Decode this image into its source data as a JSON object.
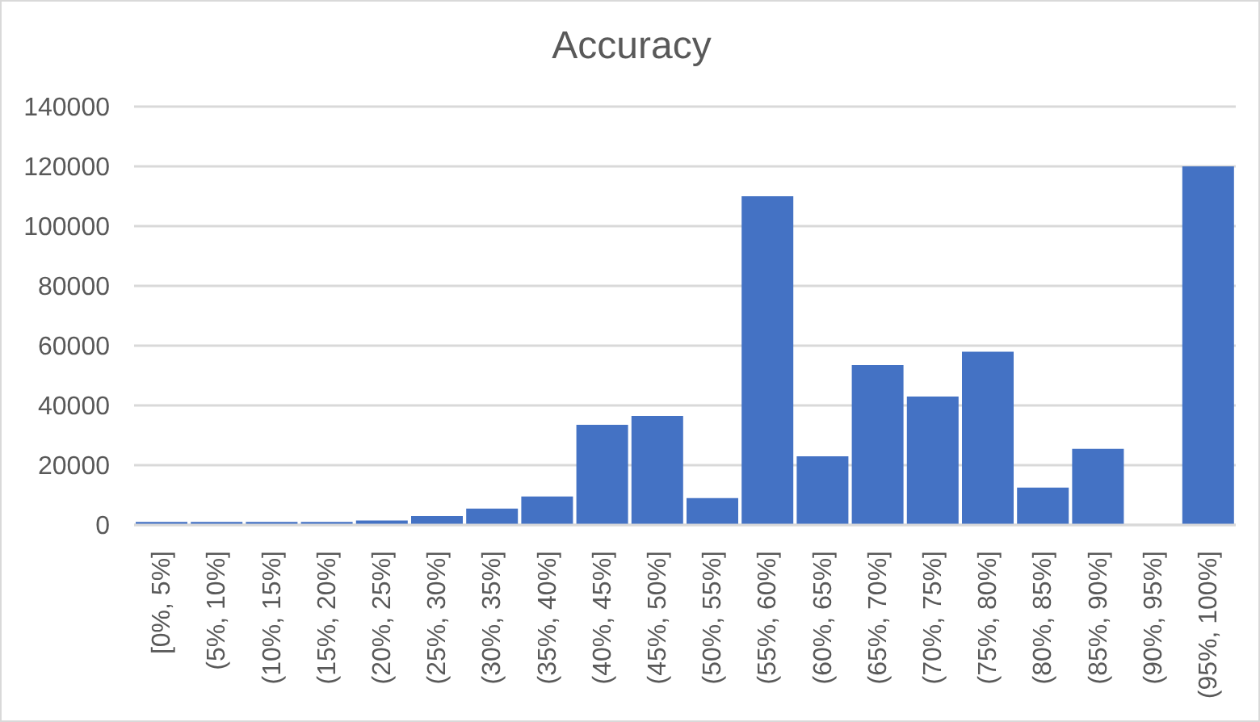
{
  "chart_data": {
    "type": "bar",
    "title": "Accuracy",
    "categories": [
      "[0%, 5%]",
      "(5%, 10%]",
      "(10%, 15%]",
      "(15%, 20%]",
      "(20%, 25%]",
      "(25%, 30%]",
      "(30%, 35%]",
      "(35%, 40%]",
      "(40%, 45%]",
      "(45%, 50%]",
      "(50%, 55%]",
      "(55%, 60%]",
      "(60%, 65%]",
      "(65%, 70%]",
      "(70%, 75%]",
      "(75%, 80%]",
      "(80%, 85%]",
      "(85%, 90%]",
      "(90%, 95%]",
      "(95%, 100%]"
    ],
    "values": [
      1000,
      1000,
      1000,
      1000,
      1500,
      3000,
      5500,
      9500,
      33500,
      36500,
      9000,
      110000,
      23000,
      53500,
      43000,
      58000,
      12500,
      25500,
      0,
      120000
    ],
    "color": "#4472c4",
    "ylim": [
      0,
      140000
    ],
    "yticks": [
      0,
      20000,
      40000,
      60000,
      80000,
      100000,
      120000,
      140000
    ],
    "grid": "y"
  }
}
